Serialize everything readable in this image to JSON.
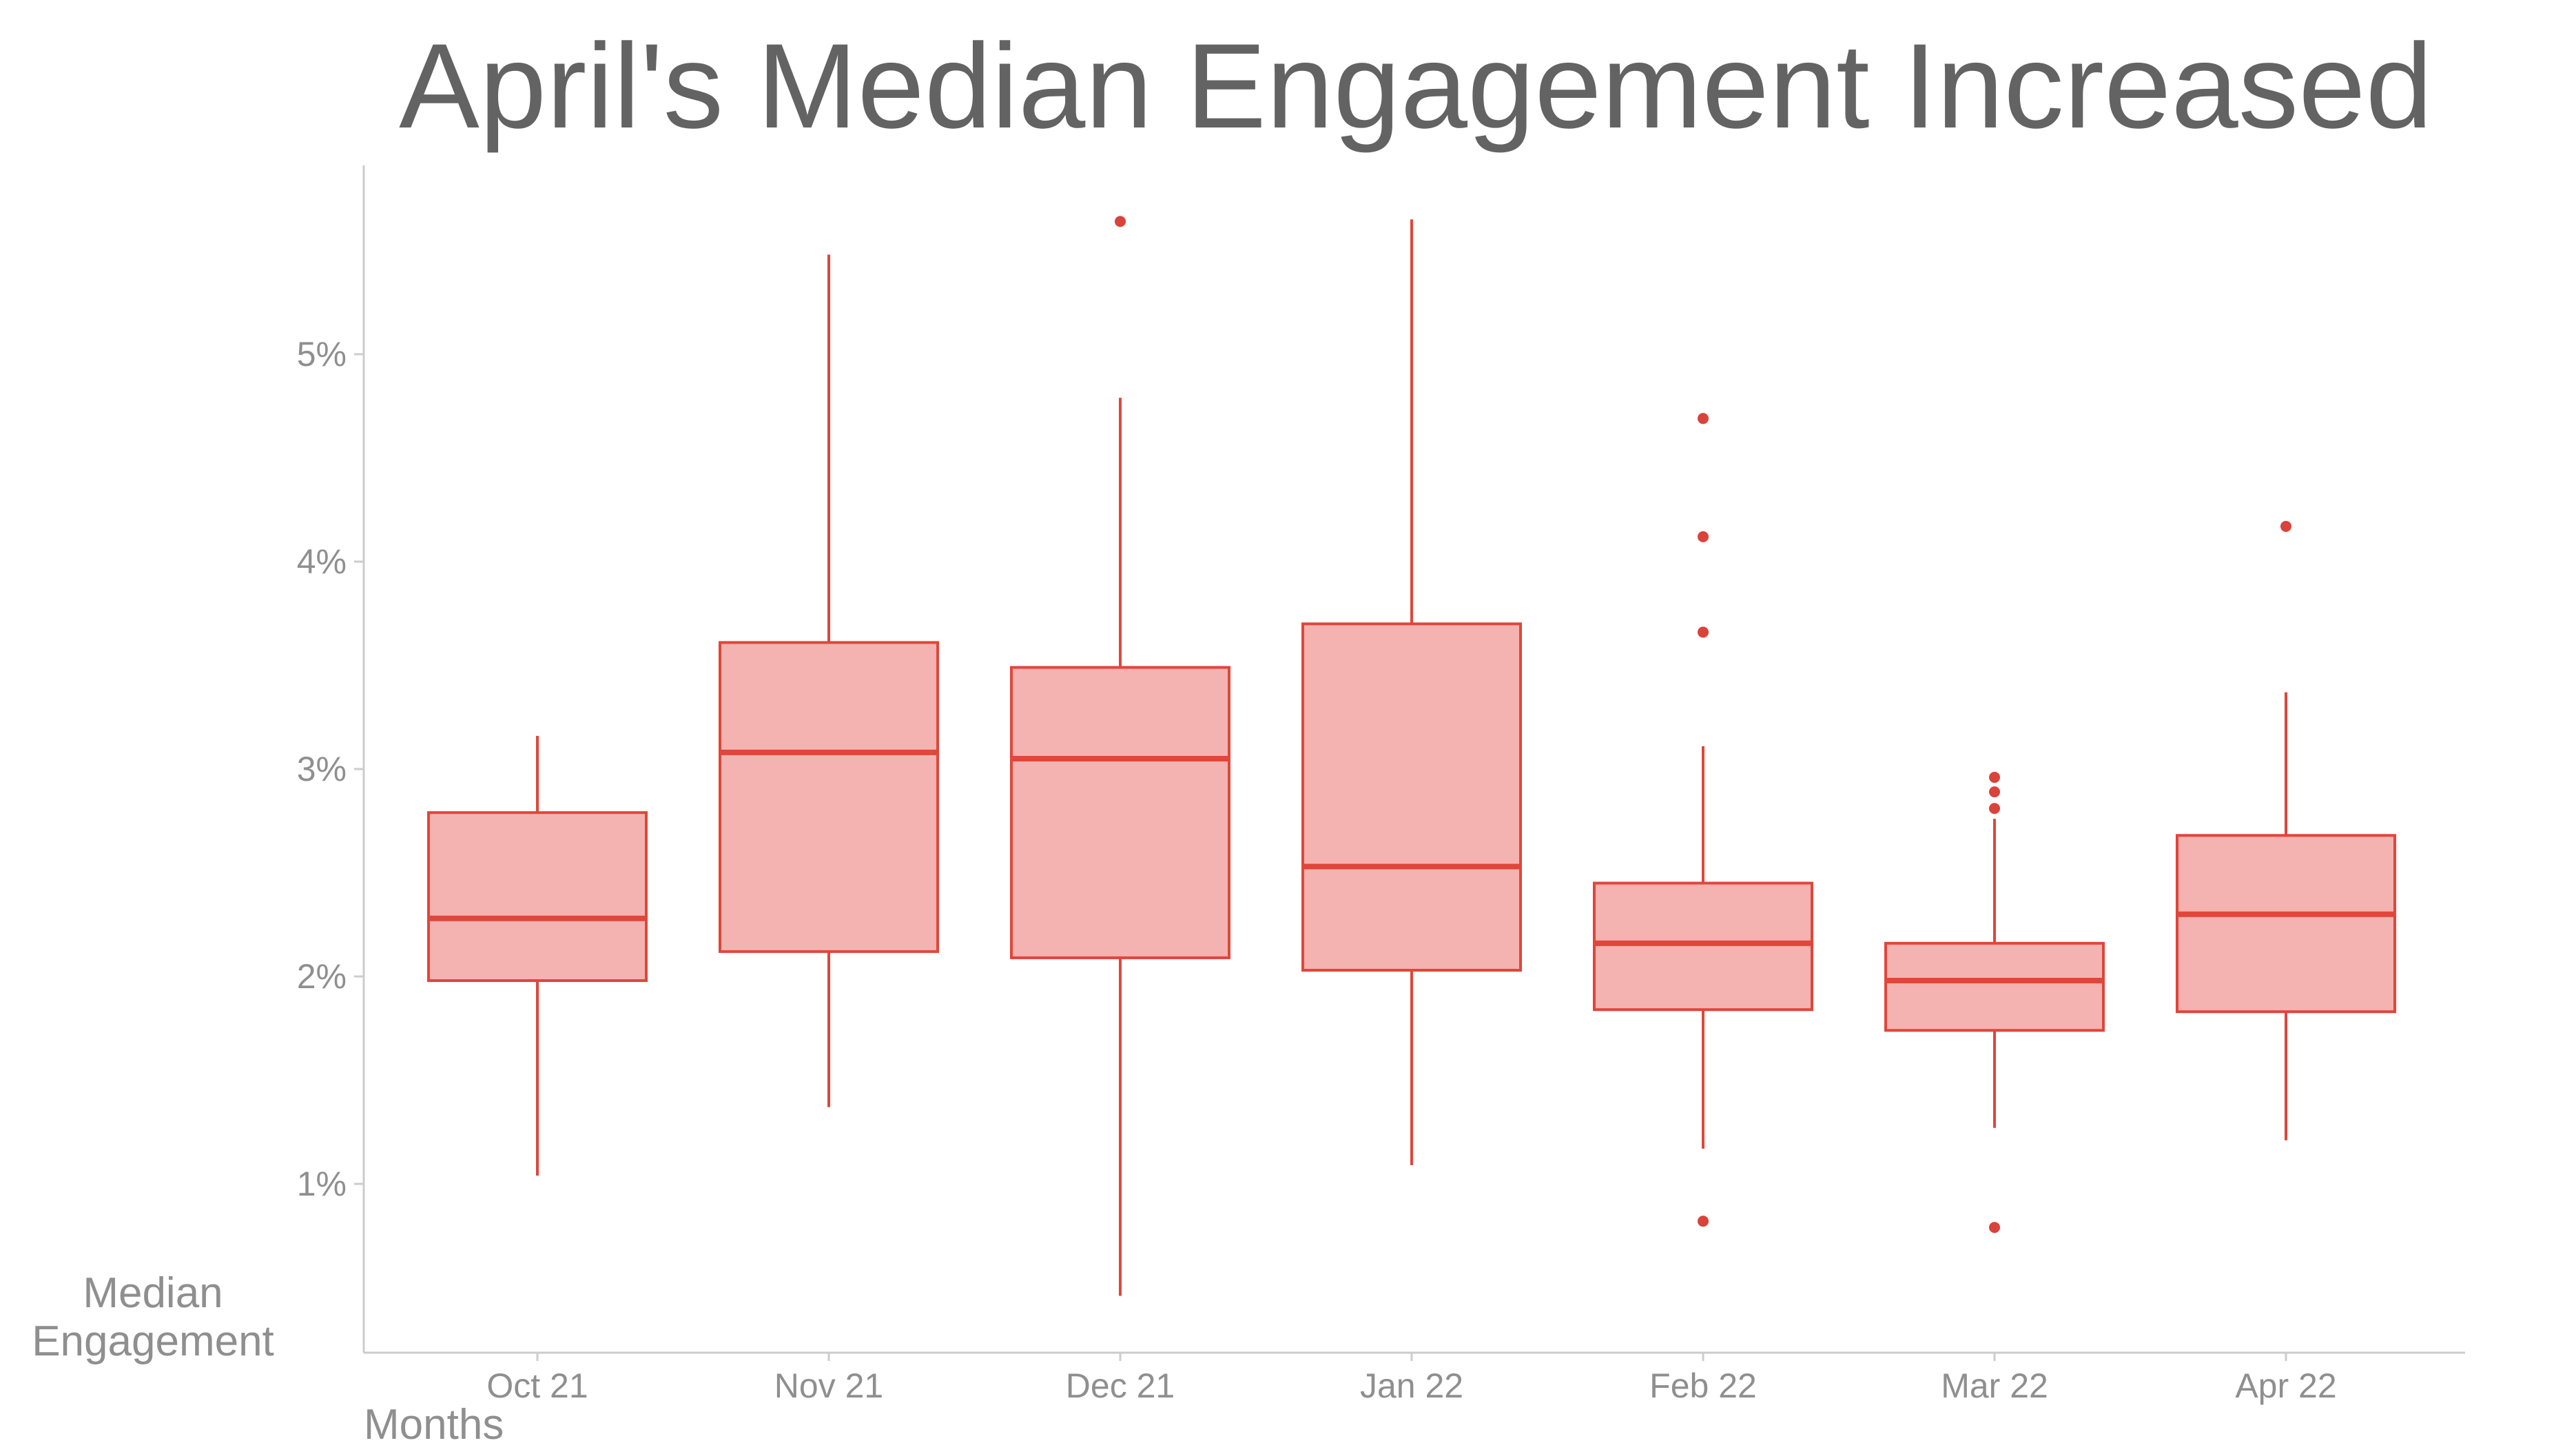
{
  "chart_data": {
    "type": "boxplot",
    "title": "April's Median Engagement Increased",
    "xlabel": "Months",
    "ylabel_lines": [
      "Median",
      "Engagement"
    ],
    "y_ticks": [
      {
        "value": 1,
        "label": "1%"
      },
      {
        "value": 2,
        "label": "2%"
      },
      {
        "value": 3,
        "label": "3%"
      },
      {
        "value": 4,
        "label": "4%"
      },
      {
        "value": 5,
        "label": "5%"
      }
    ],
    "ylim": [
      0.2,
      5.9
    ],
    "grid": false,
    "colors": {
      "box_fill": "#f4b3b0",
      "box_stroke": "#e0463a",
      "outlier": "#d9433a",
      "axis": "#cccccc"
    },
    "categories": [
      "Oct 21",
      "Nov 21",
      "Dec 21",
      "Jan 22",
      "Feb 22",
      "Mar 22",
      "Apr 22"
    ],
    "boxes": [
      {
        "min": 1.04,
        "q1": 1.98,
        "median": 2.28,
        "q3": 2.79,
        "max": 3.16,
        "outliers": []
      },
      {
        "min": 1.37,
        "q1": 2.12,
        "median": 3.08,
        "q3": 3.61,
        "max": 5.48,
        "outliers": []
      },
      {
        "min": 0.46,
        "q1": 2.09,
        "median": 3.05,
        "q3": 3.49,
        "max": 4.79,
        "outliers": [
          5.64
        ]
      },
      {
        "min": 1.09,
        "q1": 2.03,
        "median": 2.53,
        "q3": 3.7,
        "max": 5.65,
        "outliers": []
      },
      {
        "min": 1.17,
        "q1": 1.84,
        "median": 2.16,
        "q3": 2.45,
        "max": 3.11,
        "outliers": [
          0.82,
          3.66,
          4.12,
          4.69
        ]
      },
      {
        "min": 1.27,
        "q1": 1.74,
        "median": 1.98,
        "q3": 2.16,
        "max": 2.76,
        "outliers": [
          0.79,
          2.81,
          2.89,
          2.96
        ]
      },
      {
        "min": 1.21,
        "q1": 1.83,
        "median": 2.3,
        "q3": 2.68,
        "max": 3.37,
        "outliers": [
          4.17
        ]
      }
    ]
  }
}
